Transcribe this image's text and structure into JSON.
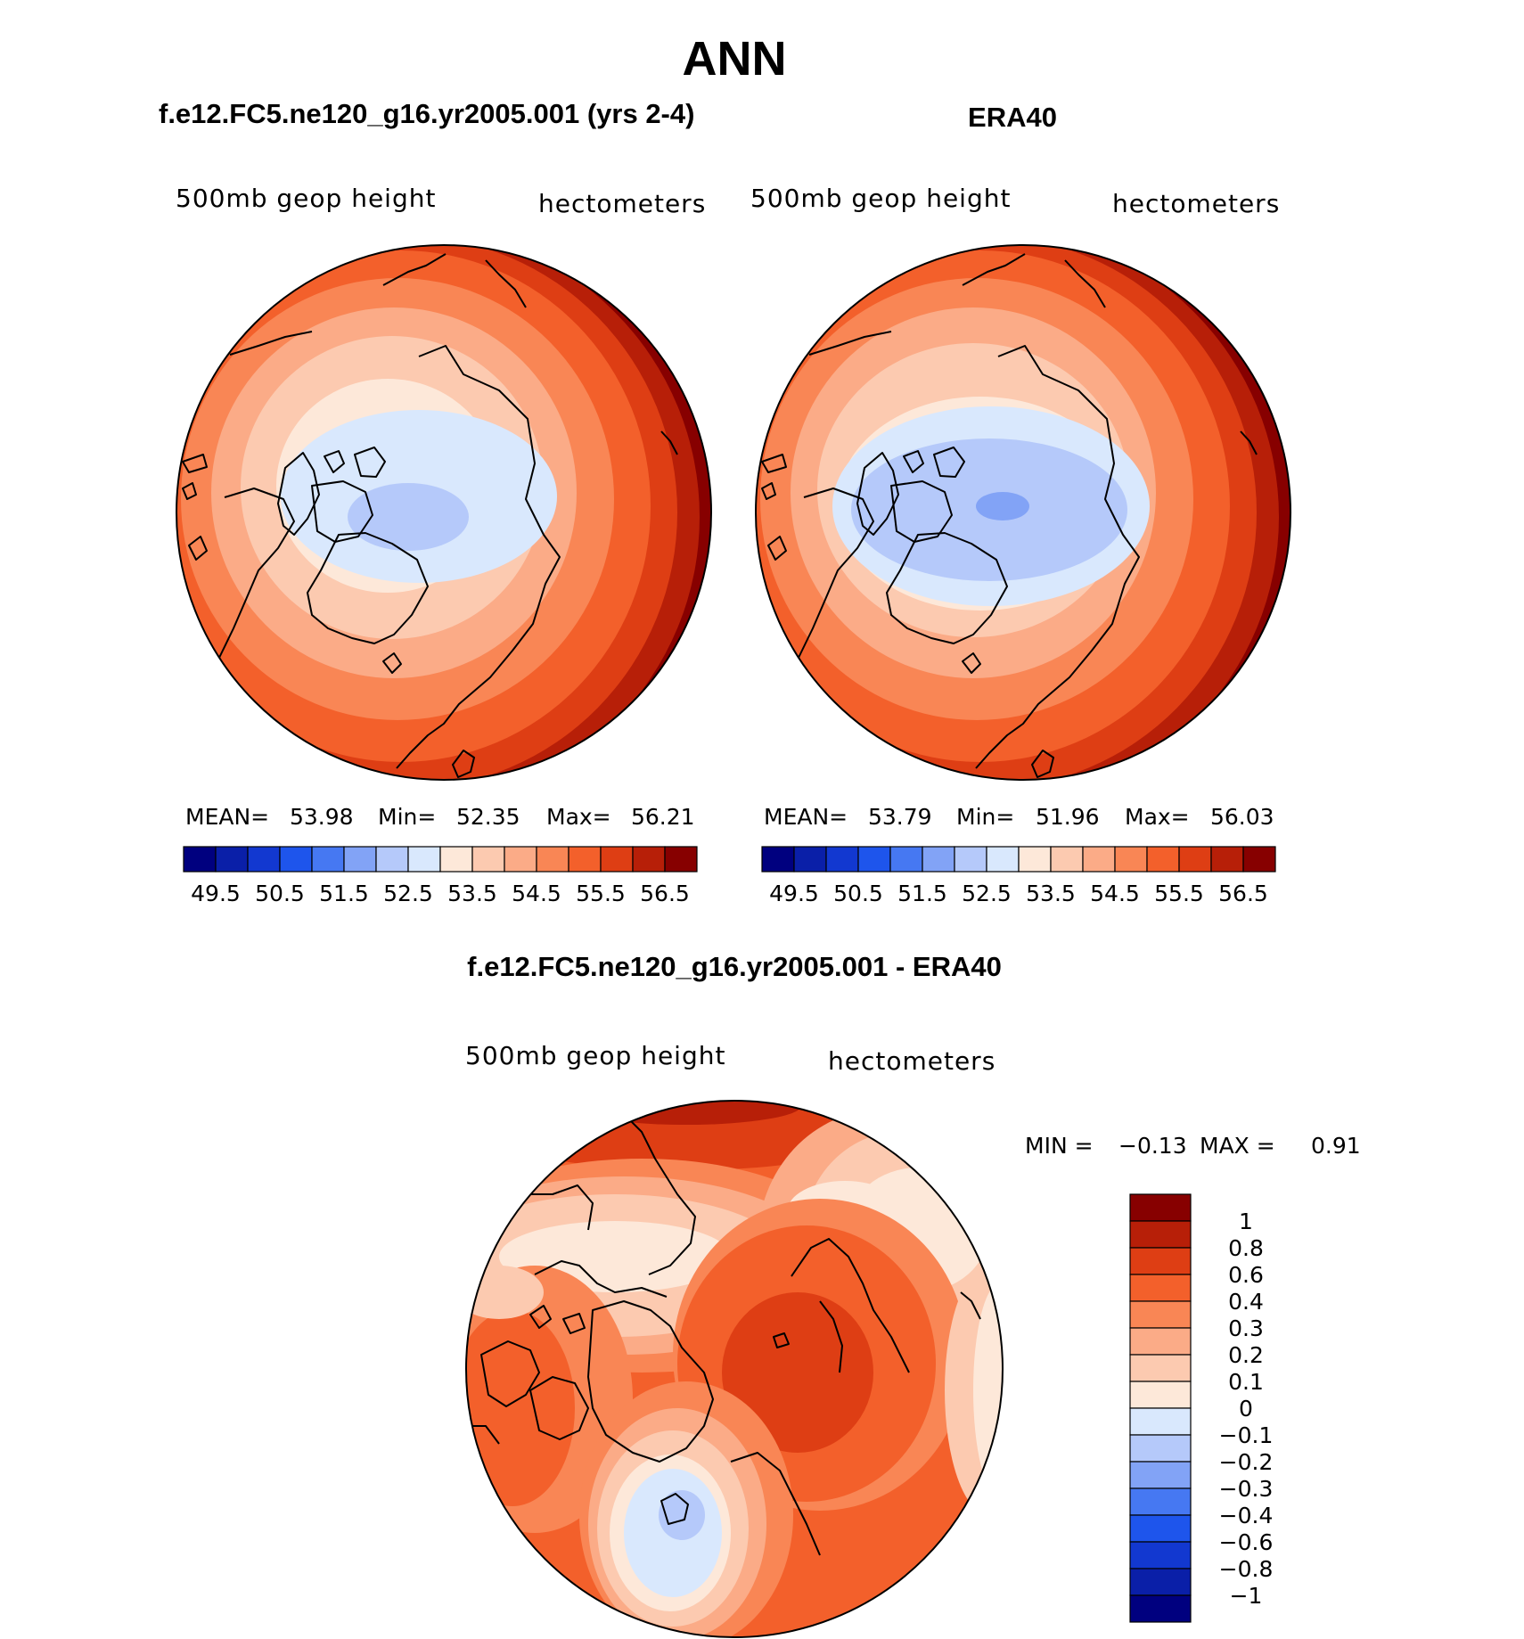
{
  "chart_data": [
    {
      "type": "heatmap",
      "projection": "north-polar-stereographic",
      "title": "f.e12.FC5.ne120_g16.yr2005.001 (yrs 2-4)",
      "variable": "500mb geop height",
      "units": "hectometers",
      "stats": {
        "mean_label": "MEAN=",
        "mean": "53.98",
        "min_label": "Min=",
        "min": "52.35",
        "max_label": "Max=",
        "max": "56.21"
      },
      "contour_levels": [
        49.5,
        50,
        50.5,
        51,
        51.5,
        52,
        52.5,
        53,
        53.5,
        54,
        54.5,
        55,
        55.5,
        56,
        56.5
      ],
      "colorbar_labels": [
        "49.5",
        "50.5",
        "51.5",
        "52.5",
        "53.5",
        "54.5",
        "55.5",
        "56.5"
      ],
      "colorbar_orientation": "horizontal"
    },
    {
      "type": "heatmap",
      "projection": "north-polar-stereographic",
      "title": "ERA40",
      "variable": "500mb geop height",
      "units": "hectometers",
      "stats": {
        "mean_label": "MEAN=",
        "mean": "53.79",
        "min_label": "Min=",
        "min": "51.96",
        "max_label": "Max=",
        "max": "56.03"
      },
      "contour_levels": [
        49.5,
        50,
        50.5,
        51,
        51.5,
        52,
        52.5,
        53,
        53.5,
        54,
        54.5,
        55,
        55.5,
        56,
        56.5
      ],
      "colorbar_labels": [
        "49.5",
        "50.5",
        "51.5",
        "52.5",
        "53.5",
        "54.5",
        "55.5",
        "56.5"
      ],
      "colorbar_orientation": "horizontal"
    },
    {
      "type": "heatmap",
      "projection": "north-polar-stereographic",
      "title": "f.e12.FC5.ne120_g16.yr2005.001 - ERA40",
      "variable": "500mb geop height",
      "units": "hectometers",
      "stats": {
        "min_label": "MIN =",
        "min": "−0.13",
        "max_label": "MAX =",
        "max": "0.91"
      },
      "contour_levels": [
        -1,
        -0.8,
        -0.6,
        -0.4,
        -0.3,
        -0.2,
        -0.1,
        0,
        0.1,
        0.2,
        0.3,
        0.4,
        0.6,
        0.8,
        1
      ],
      "colorbar_labels": [
        "1",
        "0.8",
        "0.6",
        "0.4",
        "0.3",
        "0.2",
        "0.1",
        "0",
        "−0.1",
        "−0.2",
        "−0.3",
        "−0.4",
        "−0.6",
        "−0.8",
        "−1"
      ],
      "colorbar_orientation": "vertical"
    }
  ],
  "page": {
    "title": "ANN"
  },
  "palette": [
    "#00007f",
    "#0a1fa8",
    "#1238d0",
    "#1e55ec",
    "#4678f2",
    "#82a3f6",
    "#b5c9fa",
    "#d9e8fd",
    "#fde8d9",
    "#fccab0",
    "#fbab87",
    "#f98655",
    "#f3602b",
    "#de3e14",
    "#b71f08",
    "#870000"
  ]
}
